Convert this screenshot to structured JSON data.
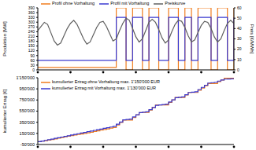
{
  "chart_data": [
    {
      "type": "line",
      "x": [
        0,
        1,
        2,
        3,
        4,
        5,
        6,
        7,
        8,
        9,
        10,
        11,
        12,
        13,
        14,
        15,
        16,
        17,
        18,
        19,
        20,
        21,
        22,
        23,
        24,
        25,
        26,
        27,
        28,
        29,
        30,
        31,
        32,
        33,
        34,
        35,
        36,
        37,
        38,
        39,
        40,
        41,
        42,
        43,
        44,
        45,
        46,
        47,
        48,
        49,
        50,
        51,
        52,
        53,
        54,
        55,
        56,
        57,
        58,
        59,
        60
      ],
      "xlim": [
        0,
        60
      ],
      "xticks": [
        0,
        10,
        20,
        30,
        40,
        50,
        60
      ],
      "ylim": [
        0,
        390
      ],
      "yticks": [
        0,
        30,
        60,
        90,
        120,
        150,
        180,
        210,
        240,
        270,
        300,
        330,
        360,
        390
      ],
      "y2lim": [
        0,
        60
      ],
      "y2ticks": [
        0,
        10,
        20,
        30,
        40,
        50,
        60
      ],
      "ylabel": "Produktion [MW]",
      "y2label": "Preis [€/MWh]",
      "tick_labels": "y",
      "legend": "upper left",
      "series": [
        {
          "name": "Profil ohne Vorhaltung",
          "color": "#f07d1e",
          "line_style": "step",
          "values": [
            15,
            15,
            15,
            15,
            15,
            15,
            15,
            15,
            15,
            15,
            15,
            15,
            15,
            15,
            15,
            15,
            15,
            15,
            15,
            15,
            15,
            15,
            15,
            15,
            390,
            390,
            390,
            0,
            0,
            390,
            390,
            390,
            0,
            0,
            390,
            390,
            390,
            0,
            0,
            0,
            390,
            390,
            390,
            0,
            0,
            390,
            390,
            0,
            0,
            390,
            390,
            390,
            390,
            0,
            0,
            390,
            390,
            390,
            0,
            0,
            390
          ]
        },
        {
          "name": "Profil mit Vorhaltung",
          "color": "#3a3ad0",
          "line_style": "step",
          "values": [
            60,
            60,
            60,
            60,
            60,
            60,
            60,
            60,
            60,
            60,
            60,
            60,
            60,
            60,
            60,
            60,
            60,
            60,
            60,
            60,
            60,
            60,
            60,
            60,
            330,
            330,
            330,
            60,
            60,
            330,
            330,
            330,
            60,
            60,
            330,
            330,
            330,
            60,
            60,
            60,
            330,
            330,
            330,
            60,
            60,
            330,
            330,
            60,
            60,
            330,
            330,
            330,
            330,
            60,
            60,
            330,
            330,
            330,
            60,
            60,
            330
          ]
        },
        {
          "name": "Preiskurve",
          "color": "#606060",
          "axis": "y2",
          "line_style": "solid",
          "values": [
            38,
            42,
            46,
            44,
            36,
            28,
            24,
            26,
            33,
            40,
            45,
            48,
            44,
            37,
            30,
            25,
            27,
            34,
            41,
            46,
            47,
            42,
            35,
            28,
            30,
            38,
            45,
            50,
            48,
            40,
            32,
            27,
            30,
            38,
            46,
            49,
            46,
            39,
            31,
            26,
            29,
            37,
            44,
            48,
            47,
            41,
            33,
            27,
            29,
            36,
            43,
            47,
            46,
            40,
            32,
            27,
            30,
            38,
            45,
            48,
            45
          ]
        }
      ]
    },
    {
      "type": "line",
      "x": [
        0,
        1,
        2,
        3,
        4,
        5,
        6,
        7,
        8,
        9,
        10,
        11,
        12,
        13,
        14,
        15,
        16,
        17,
        18,
        19,
        20,
        21,
        22,
        23,
        24,
        25,
        26,
        27,
        28,
        29,
        30,
        31,
        32,
        33,
        34,
        35,
        36,
        37,
        38,
        39,
        40,
        41,
        42,
        43,
        44,
        45,
        46,
        47,
        48,
        49,
        50,
        51,
        52,
        53,
        54,
        55,
        56,
        57,
        58,
        59,
        60
      ],
      "xlim": [
        0,
        60
      ],
      "xticks": [
        0,
        10,
        20,
        30,
        40,
        50,
        60
      ],
      "ylim": [
        -50000,
        1150000
      ],
      "yticks": [
        {
          "value": -50000,
          "label": "-50'000"
        },
        {
          "value": 150000,
          "label": "150'000"
        },
        {
          "value": 350000,
          "label": "350'000"
        },
        {
          "value": 550000,
          "label": "550'000"
        },
        {
          "value": 750000,
          "label": "750'000"
        },
        {
          "value": 950000,
          "label": "950'000"
        },
        {
          "value": 1150000,
          "label": "1'150'000"
        }
      ],
      "ylabel": "kumulierter Ertrag [€]",
      "tick_labels": "y",
      "legend": "upper left",
      "series": [
        {
          "name": "kumulierter Ertrag ohne Vorhaltung max. 1'150'000 EUR",
          "color": "#f07d1e",
          "line_style": "step",
          "values": [
            0,
            10000,
            20000,
            30000,
            40000,
            52000,
            64000,
            76000,
            88000,
            100000,
            110000,
            120000,
            130000,
            140000,
            150000,
            160000,
            172000,
            184000,
            196000,
            208000,
            220000,
            232000,
            244000,
            256000,
            300000,
            345000,
            390000,
            390000,
            390000,
            435000,
            480000,
            525000,
            525000,
            525000,
            570000,
            615000,
            660000,
            660000,
            660000,
            660000,
            705000,
            750000,
            795000,
            795000,
            795000,
            840000,
            885000,
            885000,
            885000,
            925000,
            965000,
            1005000,
            1045000,
            1045000,
            1045000,
            1080000,
            1110000,
            1140000,
            1140000,
            1140000,
            1150000
          ]
        },
        {
          "name": "kumulierter Ertrag mit Vorhaltung max. 1'130'000 EUR",
          "color": "#3a3ad0",
          "line_style": "step",
          "values": [
            0,
            12000,
            24000,
            36000,
            48000,
            60000,
            72000,
            84000,
            96000,
            108000,
            120000,
            132000,
            144000,
            156000,
            168000,
            180000,
            192000,
            204000,
            216000,
            228000,
            240000,
            252000,
            264000,
            276000,
            315000,
            354000,
            393000,
            400000,
            407000,
            446000,
            485000,
            524000,
            531000,
            538000,
            577000,
            616000,
            655000,
            662000,
            669000,
            676000,
            715000,
            754000,
            793000,
            800000,
            807000,
            846000,
            885000,
            892000,
            899000,
            938000,
            977000,
            1016000,
            1055000,
            1062000,
            1069000,
            1090000,
            1110000,
            1125000,
            1128000,
            1130000,
            1130000
          ]
        }
      ]
    }
  ]
}
